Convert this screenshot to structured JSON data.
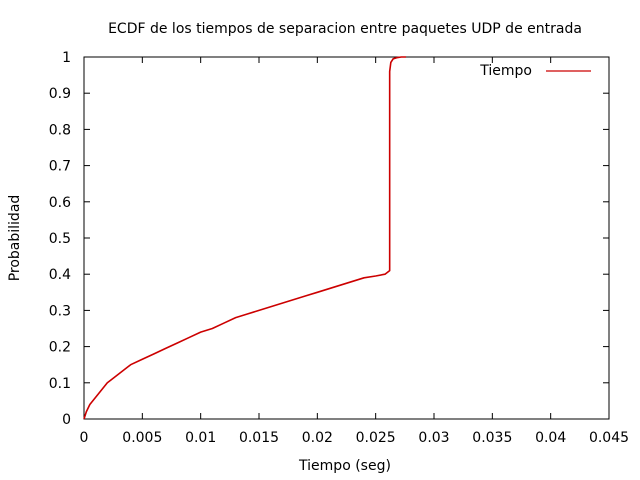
{
  "chart_data": {
    "type": "line",
    "title": "ECDF de los tiempos de separacion entre paquetes UDP de entrada",
    "xlabel": "Tiempo (seg)",
    "ylabel": "Probabilidad",
    "xlim": [
      0,
      0.045
    ],
    "ylim": [
      0,
      1
    ],
    "x_ticks": [
      0,
      0.005,
      0.01,
      0.015,
      0.02,
      0.025,
      0.03,
      0.035,
      0.04,
      0.045
    ],
    "x_tick_labels": [
      "0",
      "0.005",
      "0.01",
      "0.015",
      "0.02",
      "0.025",
      "0.03",
      "0.035",
      "0.04",
      "0.045"
    ],
    "y_ticks": [
      0,
      0.1,
      0.2,
      0.3,
      0.4,
      0.5,
      0.6,
      0.7,
      0.8,
      0.9,
      1
    ],
    "y_tick_labels": [
      "0",
      "0.1",
      "0.2",
      "0.3",
      "0.4",
      "0.5",
      "0.6",
      "0.7",
      "0.8",
      "0.9",
      "1"
    ],
    "grid": false,
    "legend_position": "top-right",
    "series": [
      {
        "name": "Tiempo",
        "color": "#cc0000",
        "x": [
          0,
          0.0002,
          0.0005,
          0.001,
          0.0015,
          0.002,
          0.003,
          0.004,
          0.005,
          0.006,
          0.007,
          0.008,
          0.009,
          0.01,
          0.011,
          0.012,
          0.013,
          0.014,
          0.015,
          0.016,
          0.017,
          0.018,
          0.019,
          0.02,
          0.021,
          0.022,
          0.023,
          0.024,
          0.025,
          0.0258,
          0.0262,
          0.0262,
          0.0263,
          0.0265,
          0.0268,
          0.0272,
          0.0276
        ],
        "y": [
          0,
          0.02,
          0.04,
          0.06,
          0.08,
          0.1,
          0.125,
          0.15,
          0.165,
          0.18,
          0.195,
          0.21,
          0.225,
          0.24,
          0.25,
          0.265,
          0.28,
          0.29,
          0.3,
          0.31,
          0.32,
          0.33,
          0.34,
          0.35,
          0.36,
          0.37,
          0.38,
          0.39,
          0.395,
          0.4,
          0.41,
          0.96,
          0.985,
          0.995,
          0.998,
          1.0,
          1.0
        ]
      }
    ]
  }
}
